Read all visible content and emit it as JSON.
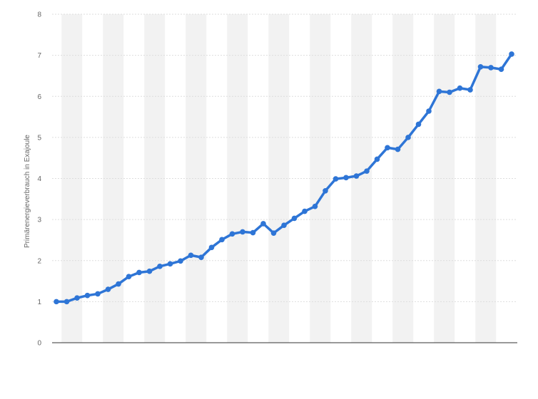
{
  "chart_data": {
    "type": "line",
    "title": "",
    "xlabel": "",
    "ylabel": "Primärenergieverbrauch in Exajoule",
    "ylim": [
      0,
      8
    ],
    "yticks": [
      0,
      1,
      2,
      3,
      4,
      5,
      6,
      7,
      8
    ],
    "grid": true,
    "legend": "none",
    "x_tick_labels_visible": false,
    "colors": {
      "line": "#2e75d6",
      "band": "#f2f2f2",
      "grid": "#dddddd",
      "axis": "#333333"
    },
    "series": [
      {
        "values": [
          1.0,
          1.0,
          1.09,
          1.15,
          1.19,
          1.3,
          1.43,
          1.61,
          1.71,
          1.74,
          1.86,
          1.92,
          1.99,
          2.13,
          2.08,
          2.32,
          2.51,
          2.65,
          2.7,
          2.68,
          2.9,
          2.67,
          2.86,
          3.03,
          3.2,
          3.32,
          3.7,
          3.99,
          4.02,
          4.06,
          4.18,
          4.47,
          4.75,
          4.71,
          5.0,
          5.32,
          5.64,
          6.12,
          6.1,
          6.2,
          6.16,
          6.72,
          6.7,
          6.66,
          7.03
        ]
      }
    ]
  }
}
